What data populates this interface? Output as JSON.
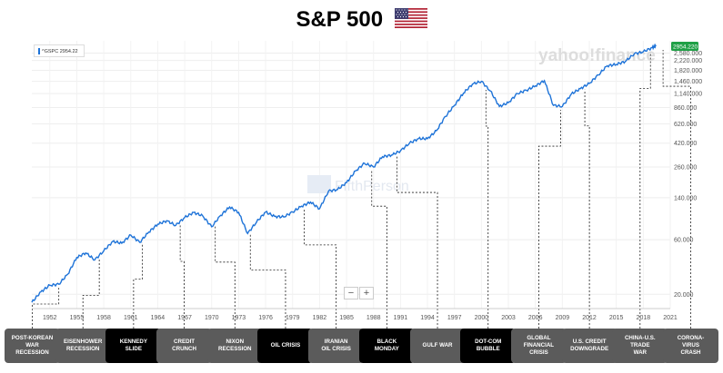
{
  "title": "S&P 500",
  "ticker_label": "^GSPC 2954.22",
  "price_tag": "2954.220",
  "watermarks": {
    "yahoo": "yahoo!finance",
    "fifth": "FifthPerson"
  },
  "zoom": {
    "minus": "−",
    "plus": "+"
  },
  "colors": {
    "line": "#1e73d8",
    "price_tag": "#1fa046",
    "event_grey": "#5b5b5b",
    "event_black": "#000000"
  },
  "chart_data": {
    "type": "line",
    "y_scale": "log",
    "xlim": [
      1950,
      2021
    ],
    "ylim": [
      15,
      3300
    ],
    "x_ticks": [
      "1952",
      "1955",
      "1958",
      "1961",
      "1964",
      "1967",
      "1970",
      "1973",
      "1976",
      "1979",
      "1982",
      "1985",
      "1988",
      "1991",
      "1994",
      "1997",
      "2000",
      "2003",
      "2006",
      "2009",
      "2012",
      "2015",
      "2018",
      "2021"
    ],
    "y_ticks": [
      {
        "value": 2954.22,
        "label": "2954.220"
      },
      {
        "value": 2580,
        "label": "2,580.000"
      },
      {
        "value": 2220,
        "label": "2,220.000"
      },
      {
        "value": 1820,
        "label": "1,820.000"
      },
      {
        "value": 1460,
        "label": "1,460.000"
      },
      {
        "value": 1140,
        "label": "1,140.000"
      },
      {
        "value": 860,
        "label": "860.000"
      },
      {
        "value": 620,
        "label": "620.000"
      },
      {
        "value": 420,
        "label": "420.000"
      },
      {
        "value": 260,
        "label": "260.000"
      },
      {
        "value": 140,
        "label": "140.000"
      },
      {
        "value": 60,
        "label": "60.000"
      },
      {
        "value": 20,
        "label": "20.000"
      }
    ],
    "series": [
      {
        "x": [
          1950,
          1951,
          1952,
          1953,
          1954,
          1955,
          1956,
          1957,
          1958,
          1959,
          1960,
          1961,
          1962,
          1963,
          1964,
          1965,
          1966,
          1967,
          1968,
          1969,
          1970,
          1971,
          1972,
          1973,
          1974,
          1975,
          1976,
          1977,
          1978,
          1979,
          1980,
          1981,
          1982,
          1983,
          1984,
          1985,
          1986,
          1987,
          1988,
          1989,
          1990,
          1991,
          1992,
          1993,
          1994,
          1995,
          1996,
          1997,
          1998,
          1999,
          2000,
          2001,
          2002,
          2003,
          2004,
          2005,
          2006,
          2007,
          2008,
          2009,
          2010,
          2011,
          2012,
          2013,
          2014,
          2015,
          2016,
          2017,
          2018,
          2019,
          2019.4
        ],
        "y": [
          17,
          21,
          24,
          24.5,
          30,
          42,
          46,
          40,
          48,
          58,
          56,
          66,
          57,
          70,
          82,
          88,
          80,
          94,
          104,
          97,
          78,
          98,
          116,
          104,
          68,
          86,
          105,
          96,
          95,
          105,
          118,
          128,
          112,
          160,
          165,
          190,
          240,
          280,
          260,
          320,
          330,
          360,
          420,
          460,
          460,
          540,
          720,
          900,
          1150,
          1380,
          1460,
          1200,
          880,
          950,
          1140,
          1220,
          1330,
          1480,
          900,
          880,
          1130,
          1260,
          1400,
          1660,
          2000,
          2050,
          2180,
          2540,
          2650,
          2880,
          2954
        ]
      }
    ],
    "events": [
      {
        "label": [
          "POST-KOREAN",
          "WAR",
          "RECESSION"
        ],
        "year": 1953,
        "style": "grey"
      },
      {
        "label": [
          "EISENHOWER",
          "RECESSION"
        ],
        "year": 1957.5,
        "style": "grey"
      },
      {
        "label": [
          "KENNEDY",
          "SLIDE"
        ],
        "year": 1962.3,
        "style": "black"
      },
      {
        "label": [
          "CREDIT",
          "CRUNCH"
        ],
        "year": 1966.5,
        "style": "grey"
      },
      {
        "label": [
          "NIXON",
          "RECESSION"
        ],
        "year": 1970.4,
        "style": "grey"
      },
      {
        "label": [
          "OIL CRISIS"
        ],
        "year": 1974.3,
        "style": "black"
      },
      {
        "label": [
          "IRANIAN",
          "OIL CRISIS"
        ],
        "year": 1980.3,
        "style": "grey"
      },
      {
        "label": [
          "BLACK",
          "MONDAY"
        ],
        "year": 1987.8,
        "style": "black"
      },
      {
        "label": [
          "GULF WAR"
        ],
        "year": 1990.6,
        "style": "grey"
      },
      {
        "label": [
          "DOT-COM",
          "BUBBLE"
        ],
        "year": 2000.5,
        "style": "black"
      },
      {
        "label": [
          "GLOBAL",
          "FINANCIAL",
          "CRISIS"
        ],
        "year": 2008.8,
        "style": "grey"
      },
      {
        "label": [
          "U.S. CREDIT",
          "DOWNGRADE"
        ],
        "year": 2011.5,
        "style": "grey"
      },
      {
        "label": [
          "CHINA-U.S.",
          "TRADE",
          "WAR"
        ],
        "year": 2018.8,
        "style": "grey"
      },
      {
        "label": [
          "CORONA-",
          "VIRUS",
          "CRASH"
        ],
        "year": 2020.2,
        "style": "grey"
      }
    ]
  }
}
